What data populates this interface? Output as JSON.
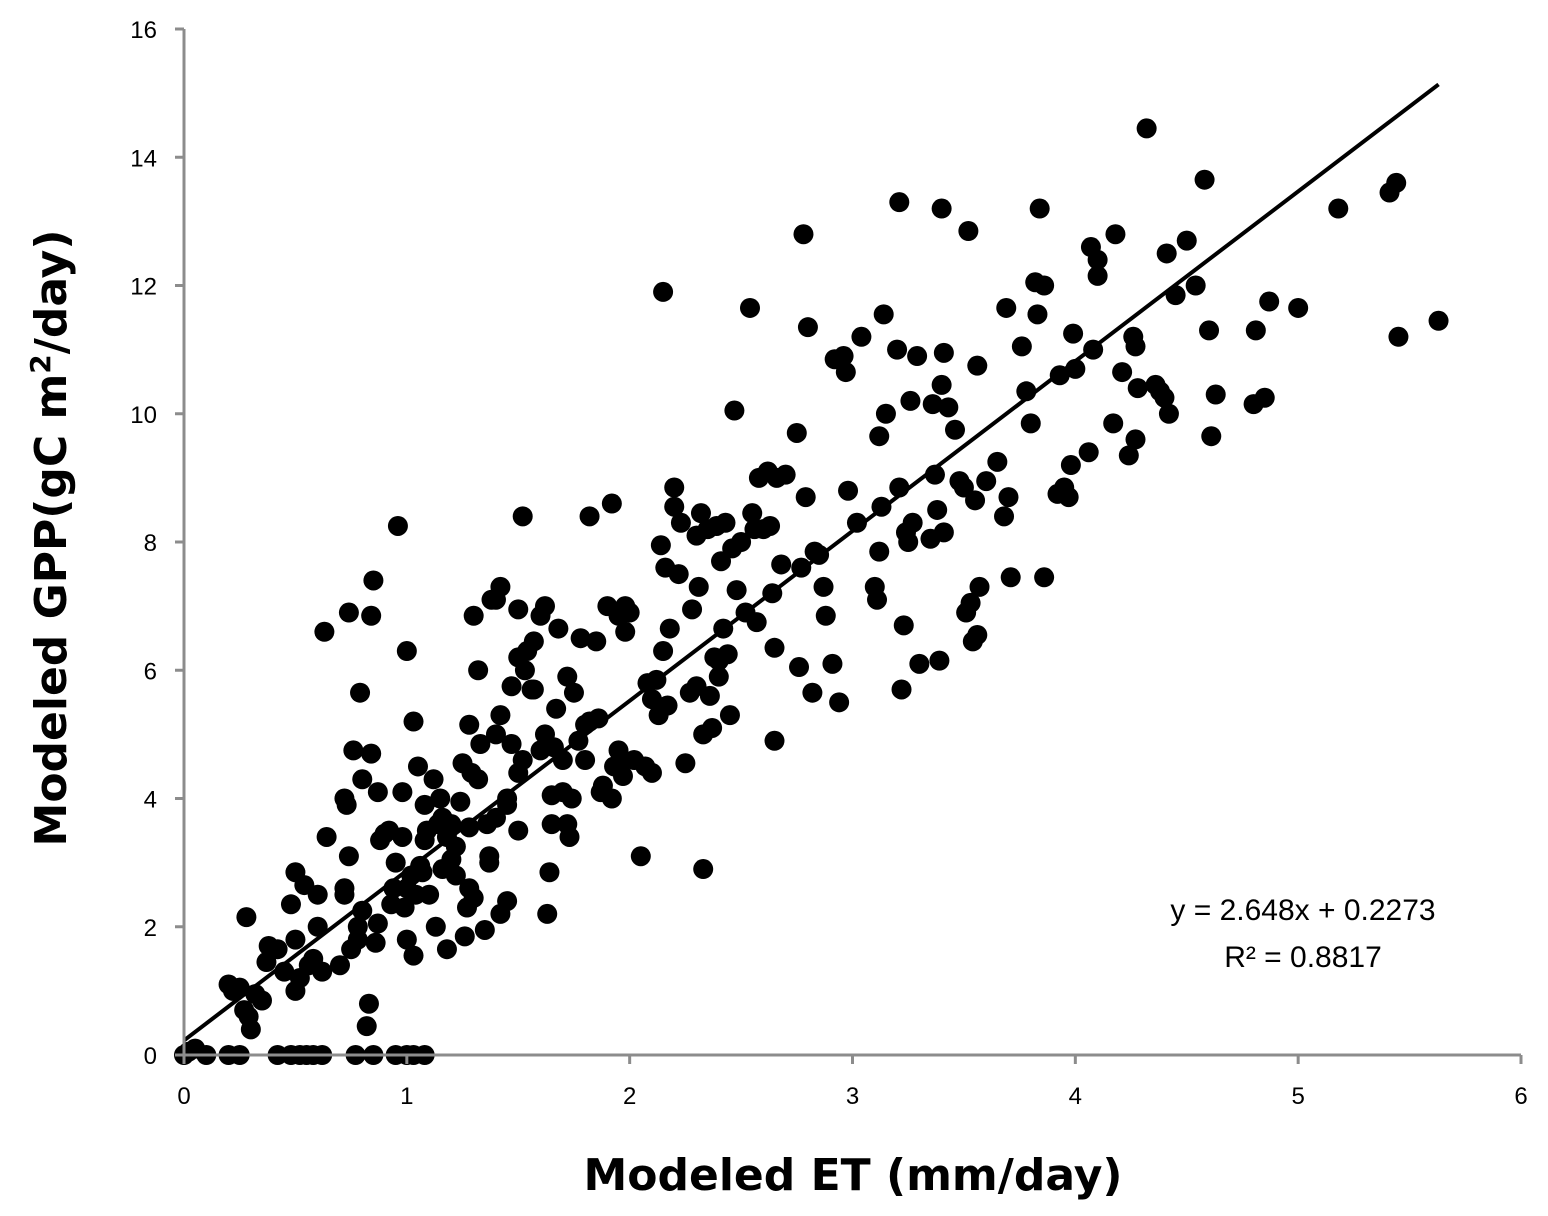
{
  "chart_data": {
    "type": "scatter",
    "title": "",
    "xlabel": "Modeled ET (mm/day)",
    "ylabel_prefix": "Modeled GPP(gC m",
    "ylabel_sup": "2",
    "ylabel_suffix": "/day)",
    "xlim": [
      0,
      6
    ],
    "ylim": [
      0,
      16
    ],
    "xticks": [
      0,
      1,
      2,
      3,
      4,
      5,
      6
    ],
    "yticks": [
      0,
      2,
      4,
      6,
      8,
      10,
      12,
      14,
      16
    ],
    "grid": false,
    "trendline": {
      "slope": 2.648,
      "intercept": 0.2273,
      "x_range": [
        0,
        5.63
      ]
    },
    "annotations": {
      "equation": "y = 2.648x + 0.2273",
      "r2": "R² = 0.8817"
    },
    "points": [
      [
        0,
        0
      ],
      [
        0.02,
        0.05
      ],
      [
        0.05,
        0.1
      ],
      [
        0.1,
        0
      ],
      [
        0.2,
        0
      ],
      [
        0.25,
        0
      ],
      [
        0.42,
        0
      ],
      [
        0.48,
        0
      ],
      [
        0.52,
        0
      ],
      [
        0.55,
        0
      ],
      [
        0.58,
        0
      ],
      [
        0.62,
        0
      ],
      [
        0.77,
        0
      ],
      [
        0.85,
        0
      ],
      [
        0.95,
        0
      ],
      [
        1.0,
        0
      ],
      [
        1.03,
        0
      ],
      [
        1.08,
        0
      ],
      [
        0.2,
        1.1
      ],
      [
        0.22,
        1.0
      ],
      [
        0.25,
        1.05
      ],
      [
        0.27,
        0.7
      ],
      [
        0.28,
        2.15
      ],
      [
        0.29,
        0.6
      ],
      [
        0.3,
        0.4
      ],
      [
        0.32,
        0.95
      ],
      [
        0.35,
        0.85
      ],
      [
        0.37,
        1.45
      ],
      [
        0.38,
        1.7
      ],
      [
        0.42,
        1.65
      ],
      [
        0.45,
        1.3
      ],
      [
        0.48,
        2.35
      ],
      [
        0.5,
        1.0
      ],
      [
        0.5,
        1.8
      ],
      [
        0.5,
        2.85
      ],
      [
        0.52,
        1.2
      ],
      [
        0.54,
        2.65
      ],
      [
        0.56,
        1.4
      ],
      [
        0.58,
        1.5
      ],
      [
        0.6,
        2.0
      ],
      [
        0.6,
        2.5
      ],
      [
        0.62,
        1.3
      ],
      [
        0.63,
        6.6
      ],
      [
        0.64,
        3.4
      ],
      [
        0.7,
        1.4
      ],
      [
        0.72,
        2.5
      ],
      [
        0.72,
        2.6
      ],
      [
        0.72,
        4.0
      ],
      [
        0.73,
        3.9
      ],
      [
        0.74,
        3.1
      ],
      [
        0.74,
        6.9
      ],
      [
        0.75,
        1.65
      ],
      [
        0.76,
        4.75
      ],
      [
        0.78,
        1.8
      ],
      [
        0.78,
        2.0
      ],
      [
        0.79,
        5.65
      ],
      [
        0.8,
        2.25
      ],
      [
        0.8,
        4.3
      ],
      [
        0.82,
        0.45
      ],
      [
        0.83,
        0.8
      ],
      [
        0.84,
        4.7
      ],
      [
        0.84,
        6.85
      ],
      [
        0.85,
        7.4
      ],
      [
        0.86,
        1.75
      ],
      [
        0.87,
        2.05
      ],
      [
        0.87,
        4.1
      ],
      [
        0.88,
        3.35
      ],
      [
        0.9,
        3.45
      ],
      [
        0.92,
        3.5
      ],
      [
        0.93,
        2.35
      ],
      [
        0.94,
        2.6
      ],
      [
        0.95,
        3.0
      ],
      [
        0.96,
        8.25
      ],
      [
        0.98,
        3.4
      ],
      [
        0.98,
        4.1
      ],
      [
        0.99,
        2.3
      ],
      [
        1.0,
        6.3
      ],
      [
        1.0,
        1.8
      ],
      [
        1.0,
        2.6
      ],
      [
        1.02,
        2.8
      ],
      [
        1.03,
        1.55
      ],
      [
        1.03,
        5.2
      ],
      [
        1.04,
        2.5
      ],
      [
        1.05,
        4.5
      ],
      [
        1.06,
        2.95
      ],
      [
        1.07,
        2.85
      ],
      [
        1.08,
        3.35
      ],
      [
        1.08,
        3.9
      ],
      [
        1.09,
        3.5
      ],
      [
        1.1,
        2.5
      ],
      [
        1.12,
        4.3
      ],
      [
        1.13,
        2.0
      ],
      [
        1.14,
        3.6
      ],
      [
        1.15,
        4.0
      ],
      [
        1.16,
        3.7
      ],
      [
        1.16,
        2.9
      ],
      [
        1.18,
        3.4
      ],
      [
        1.18,
        1.65
      ],
      [
        1.2,
        3.05
      ],
      [
        1.2,
        3.6
      ],
      [
        1.22,
        3.25
      ],
      [
        1.22,
        2.8
      ],
      [
        1.24,
        3.95
      ],
      [
        1.25,
        4.55
      ],
      [
        1.26,
        1.85
      ],
      [
        1.27,
        2.3
      ],
      [
        1.28,
        2.6
      ],
      [
        1.28,
        3.55
      ],
      [
        1.28,
        5.15
      ],
      [
        1.29,
        4.4
      ],
      [
        1.3,
        2.45
      ],
      [
        1.3,
        6.85
      ],
      [
        1.32,
        4.3
      ],
      [
        1.32,
        6.0
      ],
      [
        1.33,
        4.85
      ],
      [
        1.35,
        1.95
      ],
      [
        1.36,
        3.6
      ],
      [
        1.37,
        3.0
      ],
      [
        1.37,
        3.1
      ],
      [
        1.38,
        7.1
      ],
      [
        1.4,
        7.1
      ],
      [
        1.4,
        5.0
      ],
      [
        1.4,
        3.7
      ],
      [
        1.42,
        2.2
      ],
      [
        1.42,
        5.3
      ],
      [
        1.42,
        7.3
      ],
      [
        1.45,
        4.0
      ],
      [
        1.45,
        3.9
      ],
      [
        1.45,
        2.4
      ],
      [
        1.47,
        5.75
      ],
      [
        1.47,
        4.85
      ],
      [
        1.5,
        3.5
      ],
      [
        1.5,
        4.4
      ],
      [
        1.5,
        6.95
      ],
      [
        1.5,
        6.2
      ],
      [
        1.52,
        8.4
      ],
      [
        1.52,
        4.6
      ],
      [
        1.53,
        6.0
      ],
      [
        1.54,
        6.3
      ],
      [
        1.56,
        5.7
      ],
      [
        1.57,
        6.45
      ],
      [
        1.57,
        5.7
      ],
      [
        1.6,
        6.85
      ],
      [
        1.6,
        4.75
      ],
      [
        1.62,
        7.0
      ],
      [
        1.62,
        5.0
      ],
      [
        1.63,
        2.2
      ],
      [
        1.64,
        2.85
      ],
      [
        1.65,
        4.05
      ],
      [
        1.65,
        3.6
      ],
      [
        1.66,
        4.8
      ],
      [
        1.67,
        5.4
      ],
      [
        1.68,
        6.65
      ],
      [
        1.7,
        4.1
      ],
      [
        1.7,
        4.6
      ],
      [
        1.72,
        5.9
      ],
      [
        1.72,
        3.6
      ],
      [
        1.73,
        3.4
      ],
      [
        1.74,
        4.0
      ],
      [
        1.75,
        5.65
      ],
      [
        1.77,
        4.9
      ],
      [
        1.78,
        6.5
      ],
      [
        1.8,
        5.15
      ],
      [
        1.8,
        4.6
      ],
      [
        1.82,
        5.2
      ],
      [
        1.82,
        8.4
      ],
      [
        1.85,
        6.45
      ],
      [
        1.86,
        5.25
      ],
      [
        1.87,
        4.1
      ],
      [
        1.88,
        4.2
      ],
      [
        1.9,
        7.0
      ],
      [
        1.92,
        8.6
      ],
      [
        1.92,
        4.0
      ],
      [
        1.93,
        4.5
      ],
      [
        1.95,
        6.85
      ],
      [
        1.95,
        4.75
      ],
      [
        1.97,
        4.35
      ],
      [
        1.97,
        4.6
      ],
      [
        1.98,
        7.0
      ],
      [
        1.98,
        6.6
      ],
      [
        2.0,
        6.9
      ],
      [
        2.02,
        4.6
      ],
      [
        2.05,
        3.1
      ],
      [
        2.07,
        4.5
      ],
      [
        2.08,
        5.8
      ],
      [
        2.1,
        4.4
      ],
      [
        2.1,
        5.55
      ],
      [
        2.12,
        5.85
      ],
      [
        2.13,
        5.3
      ],
      [
        2.14,
        7.95
      ],
      [
        2.15,
        11.9
      ],
      [
        2.15,
        6.3
      ],
      [
        2.16,
        7.6
      ],
      [
        2.17,
        5.45
      ],
      [
        2.18,
        6.65
      ],
      [
        2.2,
        8.85
      ],
      [
        2.2,
        8.55
      ],
      [
        2.22,
        7.5
      ],
      [
        2.23,
        8.3
      ],
      [
        2.25,
        4.55
      ],
      [
        2.27,
        5.65
      ],
      [
        2.28,
        6.95
      ],
      [
        2.3,
        8.1
      ],
      [
        2.3,
        5.75
      ],
      [
        2.31,
        7.3
      ],
      [
        2.32,
        8.45
      ],
      [
        2.33,
        2.9
      ],
      [
        2.33,
        5.0
      ],
      [
        2.35,
        8.2
      ],
      [
        2.36,
        5.6
      ],
      [
        2.37,
        5.1
      ],
      [
        2.38,
        6.2
      ],
      [
        2.39,
        8.25
      ],
      [
        2.4,
        5.9
      ],
      [
        2.4,
        6.15
      ],
      [
        2.41,
        7.7
      ],
      [
        2.42,
        6.65
      ],
      [
        2.43,
        8.3
      ],
      [
        2.44,
        6.25
      ],
      [
        2.45,
        5.3
      ],
      [
        2.46,
        7.9
      ],
      [
        2.47,
        10.05
      ],
      [
        2.48,
        7.25
      ],
      [
        2.5,
        8.0
      ],
      [
        2.52,
        6.9
      ],
      [
        2.54,
        11.65
      ],
      [
        2.55,
        8.45
      ],
      [
        2.56,
        8.2
      ],
      [
        2.57,
        6.75
      ],
      [
        2.58,
        9.0
      ],
      [
        2.6,
        8.2
      ],
      [
        2.62,
        9.1
      ],
      [
        2.63,
        8.25
      ],
      [
        2.64,
        7.2
      ],
      [
        2.65,
        4.9
      ],
      [
        2.65,
        6.35
      ],
      [
        2.66,
        9.0
      ],
      [
        2.68,
        7.65
      ],
      [
        2.7,
        9.05
      ],
      [
        2.75,
        9.7
      ],
      [
        2.76,
        6.05
      ],
      [
        2.77,
        7.6
      ],
      [
        2.78,
        12.8
      ],
      [
        2.79,
        8.7
      ],
      [
        2.8,
        11.35
      ],
      [
        2.82,
        5.65
      ],
      [
        2.83,
        7.85
      ],
      [
        2.85,
        7.8
      ],
      [
        2.87,
        7.3
      ],
      [
        2.88,
        6.85
      ],
      [
        2.91,
        6.1
      ],
      [
        2.92,
        10.85
      ],
      [
        2.94,
        5.5
      ],
      [
        2.96,
        10.9
      ],
      [
        2.97,
        10.65
      ],
      [
        2.98,
        8.8
      ],
      [
        3.02,
        8.3
      ],
      [
        3.04,
        11.2
      ],
      [
        3.1,
        7.3
      ],
      [
        3.11,
        7.1
      ],
      [
        3.12,
        7.85
      ],
      [
        3.12,
        9.65
      ],
      [
        3.13,
        8.55
      ],
      [
        3.14,
        11.55
      ],
      [
        3.15,
        10.0
      ],
      [
        3.2,
        11.0
      ],
      [
        3.21,
        13.3
      ],
      [
        3.21,
        8.85
      ],
      [
        3.22,
        5.7
      ],
      [
        3.23,
        6.7
      ],
      [
        3.24,
        8.15
      ],
      [
        3.25,
        8.0
      ],
      [
        3.26,
        10.2
      ],
      [
        3.27,
        8.3
      ],
      [
        3.29,
        10.9
      ],
      [
        3.3,
        6.1
      ],
      [
        3.35,
        8.05
      ],
      [
        3.36,
        10.15
      ],
      [
        3.37,
        9.05
      ],
      [
        3.38,
        8.5
      ],
      [
        3.39,
        6.15
      ],
      [
        3.4,
        10.45
      ],
      [
        3.4,
        13.2
      ],
      [
        3.41,
        10.95
      ],
      [
        3.41,
        8.15
      ],
      [
        3.43,
        10.1
      ],
      [
        3.46,
        9.75
      ],
      [
        3.48,
        8.95
      ],
      [
        3.5,
        8.85
      ],
      [
        3.51,
        6.9
      ],
      [
        3.52,
        12.85
      ],
      [
        3.53,
        7.05
      ],
      [
        3.54,
        6.45
      ],
      [
        3.55,
        8.65
      ],
      [
        3.56,
        6.55
      ],
      [
        3.56,
        10.75
      ],
      [
        3.57,
        7.3
      ],
      [
        3.6,
        8.95
      ],
      [
        3.65,
        9.25
      ],
      [
        3.68,
        8.4
      ],
      [
        3.69,
        11.65
      ],
      [
        3.7,
        8.7
      ],
      [
        3.71,
        7.45
      ],
      [
        3.76,
        11.05
      ],
      [
        3.78,
        10.35
      ],
      [
        3.8,
        9.85
      ],
      [
        3.82,
        12.05
      ],
      [
        3.83,
        11.55
      ],
      [
        3.84,
        13.2
      ],
      [
        3.86,
        7.45
      ],
      [
        3.86,
        12.0
      ],
      [
        3.92,
        8.75
      ],
      [
        3.93,
        10.6
      ],
      [
        3.95,
        8.85
      ],
      [
        3.97,
        8.7
      ],
      [
        3.98,
        9.2
      ],
      [
        3.99,
        11.25
      ],
      [
        4.0,
        10.7
      ],
      [
        4.06,
        9.4
      ],
      [
        4.07,
        12.6
      ],
      [
        4.08,
        11.0
      ],
      [
        4.1,
        12.15
      ],
      [
        4.1,
        12.4
      ],
      [
        4.17,
        9.85
      ],
      [
        4.18,
        12.8
      ],
      [
        4.21,
        10.65
      ],
      [
        4.24,
        9.35
      ],
      [
        4.26,
        11.2
      ],
      [
        4.27,
        11.05
      ],
      [
        4.27,
        9.6
      ],
      [
        4.28,
        10.4
      ],
      [
        4.32,
        14.45
      ],
      [
        4.36,
        10.45
      ],
      [
        4.38,
        10.35
      ],
      [
        4.4,
        10.25
      ],
      [
        4.41,
        12.5
      ],
      [
        4.42,
        10.0
      ],
      [
        4.45,
        11.85
      ],
      [
        4.5,
        12.7
      ],
      [
        4.54,
        12.0
      ],
      [
        4.58,
        13.65
      ],
      [
        4.6,
        11.3
      ],
      [
        4.61,
        9.65
      ],
      [
        4.63,
        10.3
      ],
      [
        4.8,
        10.15
      ],
      [
        4.81,
        11.3
      ],
      [
        4.85,
        10.25
      ],
      [
        4.87,
        11.75
      ],
      [
        5.0,
        11.65
      ],
      [
        5.18,
        13.2
      ],
      [
        5.41,
        13.45
      ],
      [
        5.44,
        13.6
      ],
      [
        5.45,
        11.2
      ],
      [
        5.63,
        11.45
      ]
    ]
  }
}
